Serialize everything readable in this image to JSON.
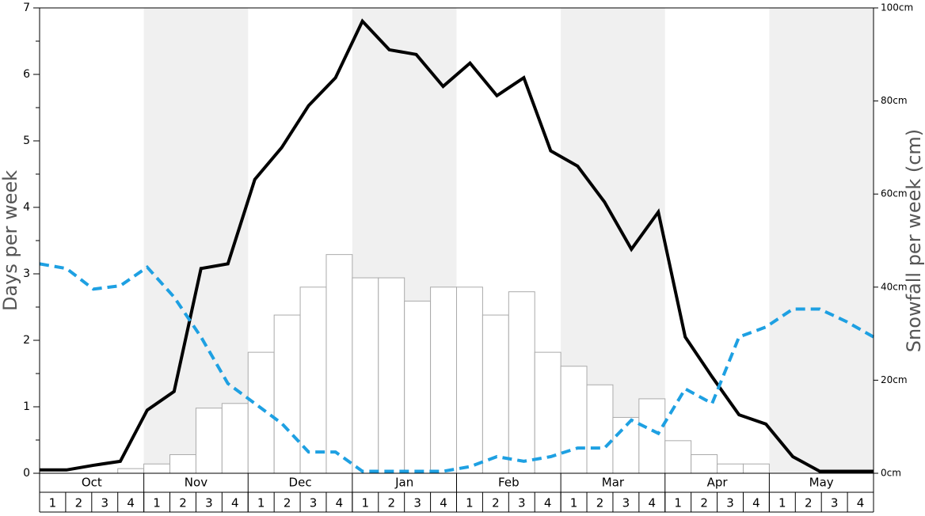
{
  "chart_data": {
    "type": "bar",
    "y_label": "Days per week",
    "y2_label": "Snowfall per week (cm)",
    "months": [
      "Oct",
      "Nov",
      "Dec",
      "Jan",
      "Feb",
      "Mar",
      "Apr",
      "May"
    ],
    "categories": [
      "1",
      "2",
      "3",
      "4",
      "1",
      "2",
      "3",
      "4",
      "1",
      "2",
      "3",
      "4",
      "1",
      "2",
      "3",
      "4",
      "1",
      "2",
      "3",
      "4",
      "1",
      "2",
      "3",
      "4",
      "1",
      "2",
      "3",
      "4",
      "1",
      "2",
      "3",
      "4"
    ],
    "ylim": [
      0,
      7
    ],
    "yticks": [
      0,
      1,
      2,
      3,
      4,
      5,
      6,
      7
    ],
    "y2lim": [
      0,
      100
    ],
    "y2ticks": [
      {
        "value": 0,
        "label": "0cm"
      },
      {
        "value": 20,
        "label": "20cm"
      },
      {
        "value": 40,
        "label": "40cm"
      },
      {
        "value": 60,
        "label": "60cm"
      },
      {
        "value": 80,
        "label": "80cm"
      },
      {
        "value": 100,
        "label": "100cm"
      }
    ],
    "shade_color": "#f0f0f0",
    "series": [
      {
        "type": "bar",
        "axis": "y2",
        "color": "#ffffff",
        "values": [
          0,
          0,
          0,
          1,
          2,
          4,
          14,
          15,
          26,
          34,
          40,
          47,
          42,
          42,
          37,
          40,
          40,
          34,
          39,
          26,
          23,
          19,
          12,
          16,
          7,
          4,
          2,
          2,
          0,
          0,
          0,
          0
        ]
      },
      {
        "type": "line",
        "color": "#000000",
        "values": [
          0.05,
          0.05,
          0.12,
          0.18,
          0.95,
          1.23,
          3.08,
          3.15,
          4.42,
          4.9,
          5.53,
          5.95,
          6.8,
          6.37,
          6.3,
          5.82,
          6.17,
          5.68,
          5.95,
          4.85,
          4.62,
          4.08,
          3.37,
          3.93,
          2.05,
          1.45,
          0.88,
          0.74,
          0.25,
          0.03,
          0.03,
          0.03
        ]
      },
      {
        "type": "line",
        "color": "#1ea0e2",
        "dashed": true,
        "values": [
          3.15,
          3.08,
          2.77,
          2.82,
          3.1,
          2.65,
          2.05,
          1.35,
          1.05,
          0.75,
          0.32,
          0.32,
          0.03,
          0.03,
          0.03,
          0.03,
          0.1,
          0.25,
          0.18,
          0.25,
          0.38,
          0.38,
          0.8,
          0.6,
          1.27,
          1.05,
          2.05,
          2.2,
          2.47,
          2.47,
          2.28,
          2.05
        ]
      }
    ]
  }
}
